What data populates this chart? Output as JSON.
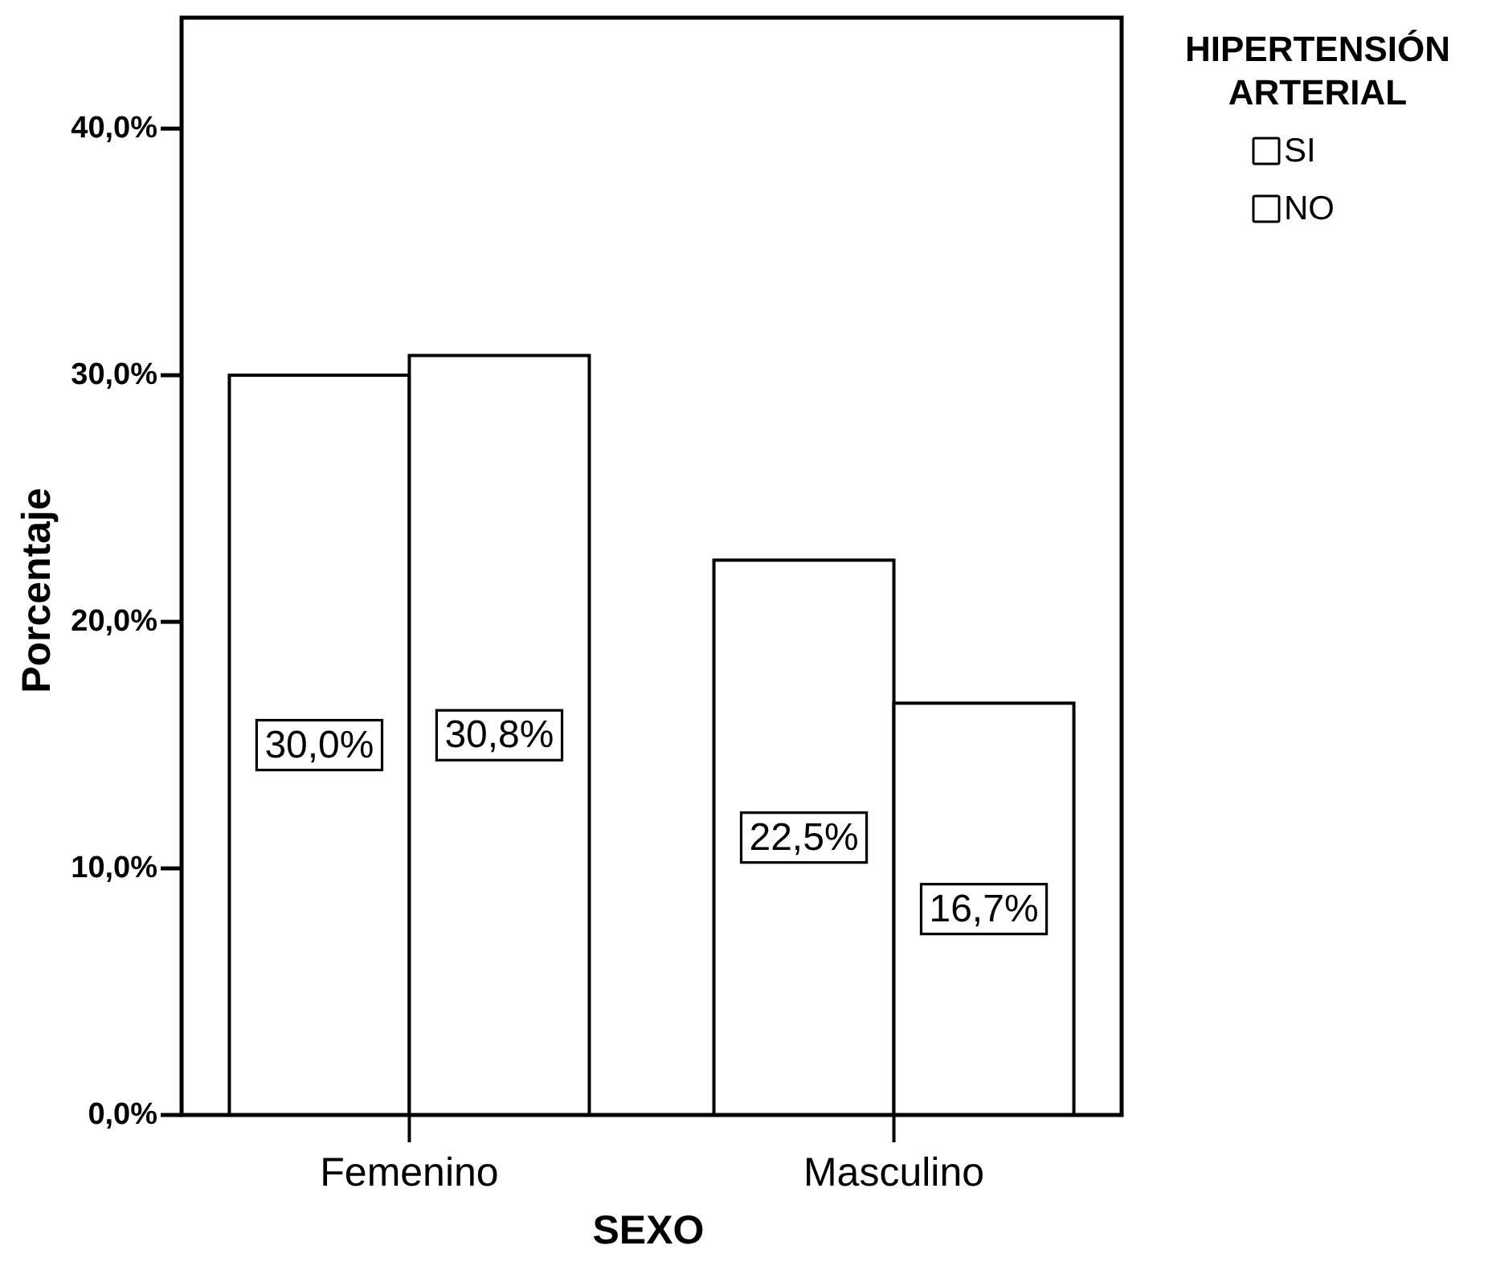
{
  "chart_data": {
    "type": "bar",
    "xlabel": "SEXO",
    "ylabel": "Porcentaje",
    "legend_title": "HIPERTENSIÓN ARTERIAL",
    "categories": [
      "Femenino",
      "Masculino"
    ],
    "series": [
      {
        "name": "SI",
        "color": "#ffffff",
        "values": [
          30.0,
          22.5
        ],
        "value_labels": [
          "30,0%",
          "22,5%"
        ]
      },
      {
        "name": "NO",
        "color": "#ffffff",
        "values": [
          30.8,
          16.7
        ],
        "value_labels": [
          "30,8%",
          "16,7%"
        ]
      }
    ],
    "ylim": [
      0,
      44.5
    ],
    "yticks": [
      {
        "value": 0,
        "label": "0,0%"
      },
      {
        "value": 10,
        "label": "10,0%"
      },
      {
        "value": 20,
        "label": "20,0%"
      },
      {
        "value": 30,
        "label": "30,0%"
      },
      {
        "value": 40,
        "label": "40,0%"
      }
    ],
    "legend": "top right"
  }
}
